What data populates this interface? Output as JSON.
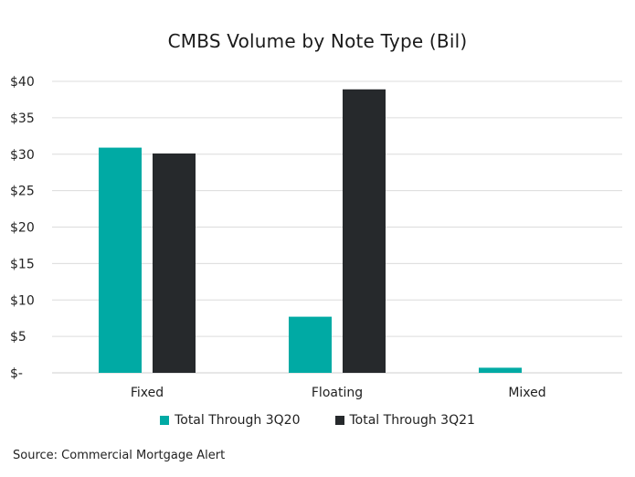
{
  "chart_data": {
    "type": "bar",
    "title": "CMBS Volume by Note Type (Bil)",
    "categories": [
      "Fixed",
      "Floating",
      "Mixed"
    ],
    "series": [
      {
        "name": "Total Through 3Q20",
        "color": "#00aaa4",
        "values": [
          30.9,
          7.7,
          0.7
        ]
      },
      {
        "name": "Total Through 3Q21",
        "color": "#26292c",
        "values": [
          30.1,
          38.9,
          0
        ]
      }
    ],
    "y_tick_labels": [
      "$-",
      "$5",
      "$10",
      "$15",
      "$20",
      "$25",
      "$30",
      "$35",
      "$40"
    ],
    "ylim": [
      0,
      40
    ],
    "grid": true,
    "legend_position": "bottom-center",
    "xlabel": "",
    "ylabel": ""
  },
  "source_note": "Source: Commercial Mortgage Alert"
}
